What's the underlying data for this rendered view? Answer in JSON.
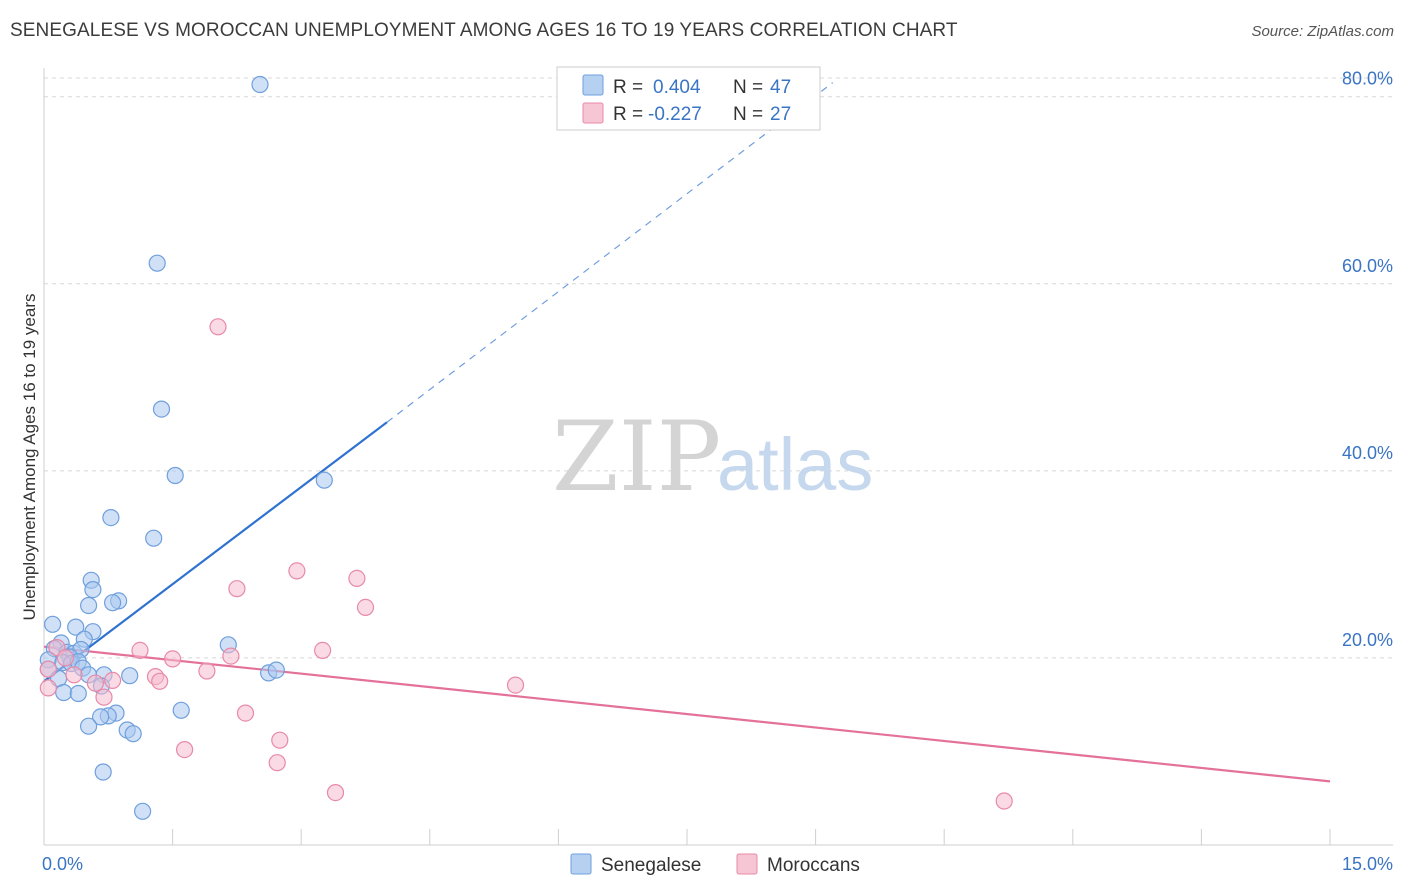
{
  "header": {
    "title": "SENEGALESE VS MOROCCAN UNEMPLOYMENT AMONG AGES 16 TO 19 YEARS CORRELATION CHART",
    "source": "Source: ZipAtlas.com"
  },
  "watermark": {
    "zip": "ZIP",
    "atlas": "atlas"
  },
  "legend": {
    "r_label": "R =",
    "n_label": "N =",
    "rows": [
      {
        "r": "0.404",
        "n": "47"
      },
      {
        "r": "-0.227",
        "n": "27"
      }
    ]
  },
  "bottom_legend": [
    "Senegalese",
    "Moroccans"
  ],
  "colors": {
    "blue_fill": "#a9c8f0",
    "blue_stroke": "#6f9fdc",
    "blue_line": "#2f72d0",
    "pink_fill": "#f6bccd",
    "pink_stroke": "#e88aa7",
    "pink_line": "#e4719a",
    "grid": "#d8d8d8",
    "tick_text": "#3a74c4"
  },
  "chart_data": {
    "type": "scatter",
    "title": "SENEGALESE VS MOROCCAN UNEMPLOYMENT AMONG AGES 16 TO 19 YEARS CORRELATION CHART",
    "xlabel": "",
    "ylabel": "Unemployment Among Ages 16 to 19 years",
    "xlim": [
      0,
      15
    ],
    "ylim": [
      0,
      82
    ],
    "x_tick_labels": [
      {
        "value": 0,
        "label": "0.0%"
      },
      {
        "value": 15,
        "label": "15.0%"
      }
    ],
    "x_minor_ticks": [
      1.5,
      3,
      4.5,
      6,
      7.5,
      9,
      10.5,
      12,
      13.5
    ],
    "y_ticks": [
      {
        "value": 20,
        "label": "20.0%"
      },
      {
        "value": 40,
        "label": "40.0%"
      },
      {
        "value": 60,
        "label": "60.0%"
      },
      {
        "value": 80,
        "label": "80.0%"
      }
    ],
    "series": [
      {
        "name": "Senegalese",
        "R": 0.404,
        "N": 47,
        "trend": {
          "x0": 0,
          "y0": 17.5,
          "x1": 4.0,
          "y1": 45.2,
          "dash_to_x": 9.2,
          "dash_to_y": 81.5
        },
        "points": [
          [
            2.52,
            81.3
          ],
          [
            1.32,
            62.2
          ],
          [
            1.37,
            46.6
          ],
          [
            1.53,
            39.5
          ],
          [
            0.78,
            35.0
          ],
          [
            1.28,
            32.8
          ],
          [
            3.27,
            39.0
          ],
          [
            0.55,
            28.3
          ],
          [
            0.57,
            27.3
          ],
          [
            0.52,
            25.6
          ],
          [
            0.87,
            26.1
          ],
          [
            0.8,
            25.9
          ],
          [
            0.1,
            23.6
          ],
          [
            0.37,
            23.3
          ],
          [
            0.57,
            22.8
          ],
          [
            0.47,
            22.0
          ],
          [
            0.2,
            21.6
          ],
          [
            0.12,
            21.0
          ],
          [
            0.27,
            20.6
          ],
          [
            0.35,
            20.5
          ],
          [
            0.43,
            20.9
          ],
          [
            0.3,
            20.1
          ],
          [
            0.05,
            19.8
          ],
          [
            0.22,
            19.5
          ],
          [
            0.32,
            19.4
          ],
          [
            0.4,
            19.6
          ],
          [
            0.45,
            18.9
          ],
          [
            0.05,
            18.8
          ],
          [
            0.17,
            17.8
          ],
          [
            0.52,
            18.2
          ],
          [
            0.7,
            18.2
          ],
          [
            1.0,
            18.1
          ],
          [
            0.67,
            17.0
          ],
          [
            0.23,
            16.3
          ],
          [
            0.4,
            16.2
          ],
          [
            2.15,
            21.4
          ],
          [
            2.62,
            18.4
          ],
          [
            2.71,
            18.7
          ],
          [
            1.6,
            14.4
          ],
          [
            0.84,
            14.1
          ],
          [
            0.75,
            13.8
          ],
          [
            0.66,
            13.7
          ],
          [
            0.52,
            12.7
          ],
          [
            0.97,
            12.3
          ],
          [
            1.04,
            11.9
          ],
          [
            0.69,
            7.8
          ],
          [
            1.15,
            3.6
          ]
        ]
      },
      {
        "name": "Moroccans",
        "R": -0.227,
        "N": 27,
        "trend": {
          "x0": 0,
          "y0": 21.2,
          "x1": 15.0,
          "y1": 6.8
        },
        "points": [
          [
            2.03,
            55.4
          ],
          [
            2.95,
            29.3
          ],
          [
            3.65,
            28.5
          ],
          [
            2.25,
            27.4
          ],
          [
            3.75,
            25.4
          ],
          [
            3.25,
            20.8
          ],
          [
            1.12,
            20.8
          ],
          [
            1.5,
            19.9
          ],
          [
            2.18,
            20.2
          ],
          [
            0.15,
            21.1
          ],
          [
            0.25,
            20.0
          ],
          [
            0.05,
            18.8
          ],
          [
            0.35,
            18.2
          ],
          [
            0.6,
            17.3
          ],
          [
            0.8,
            17.6
          ],
          [
            1.3,
            18.0
          ],
          [
            1.9,
            18.6
          ],
          [
            1.35,
            17.5
          ],
          [
            0.7,
            15.8
          ],
          [
            5.5,
            17.1
          ],
          [
            0.05,
            16.8
          ],
          [
            2.35,
            14.1
          ],
          [
            2.75,
            11.2
          ],
          [
            1.64,
            10.2
          ],
          [
            2.72,
            8.8
          ],
          [
            3.4,
            5.6
          ],
          [
            11.2,
            4.7
          ]
        ]
      }
    ]
  }
}
